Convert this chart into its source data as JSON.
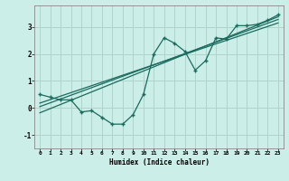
{
  "xlabel": "Humidex (Indice chaleur)",
  "ylabel": "",
  "bg_color": "#cceee8",
  "line_color": "#1a6b5e",
  "grid_color": "#aed4cc",
  "x_data": [
    0,
    1,
    2,
    3,
    4,
    5,
    6,
    7,
    8,
    9,
    10,
    11,
    12,
    13,
    14,
    15,
    16,
    17,
    18,
    19,
    20,
    21,
    22,
    23
  ],
  "y_jagged": [
    0.5,
    0.4,
    0.3,
    0.3,
    -0.15,
    -0.1,
    -0.35,
    -0.6,
    -0.6,
    -0.25,
    0.5,
    2.0,
    2.6,
    2.4,
    2.1,
    1.4,
    1.75,
    2.6,
    2.55,
    3.05,
    3.05,
    3.1,
    3.25,
    3.45
  ],
  "y_line2_start": -0.15,
  "y_line2_end": 3.35,
  "y_line3_start": 0.05,
  "y_line3_end": 3.2,
  "xlim": [
    -0.5,
    23.5
  ],
  "ylim": [
    -1.5,
    3.8
  ],
  "yticks": [
    -1,
    0,
    1,
    2,
    3
  ],
  "xticks": [
    0,
    1,
    2,
    3,
    4,
    5,
    6,
    7,
    8,
    9,
    10,
    11,
    12,
    13,
    14,
    15,
    16,
    17,
    18,
    19,
    20,
    21,
    22,
    23
  ],
  "trend_lines": [
    {
      "x0": 0,
      "y0": -0.18,
      "x1": 23,
      "y1": 3.38
    },
    {
      "x0": 0,
      "y0": 0.05,
      "x1": 23,
      "y1": 3.28
    },
    {
      "x0": 0,
      "y0": 0.18,
      "x1": 23,
      "y1": 3.15
    }
  ]
}
